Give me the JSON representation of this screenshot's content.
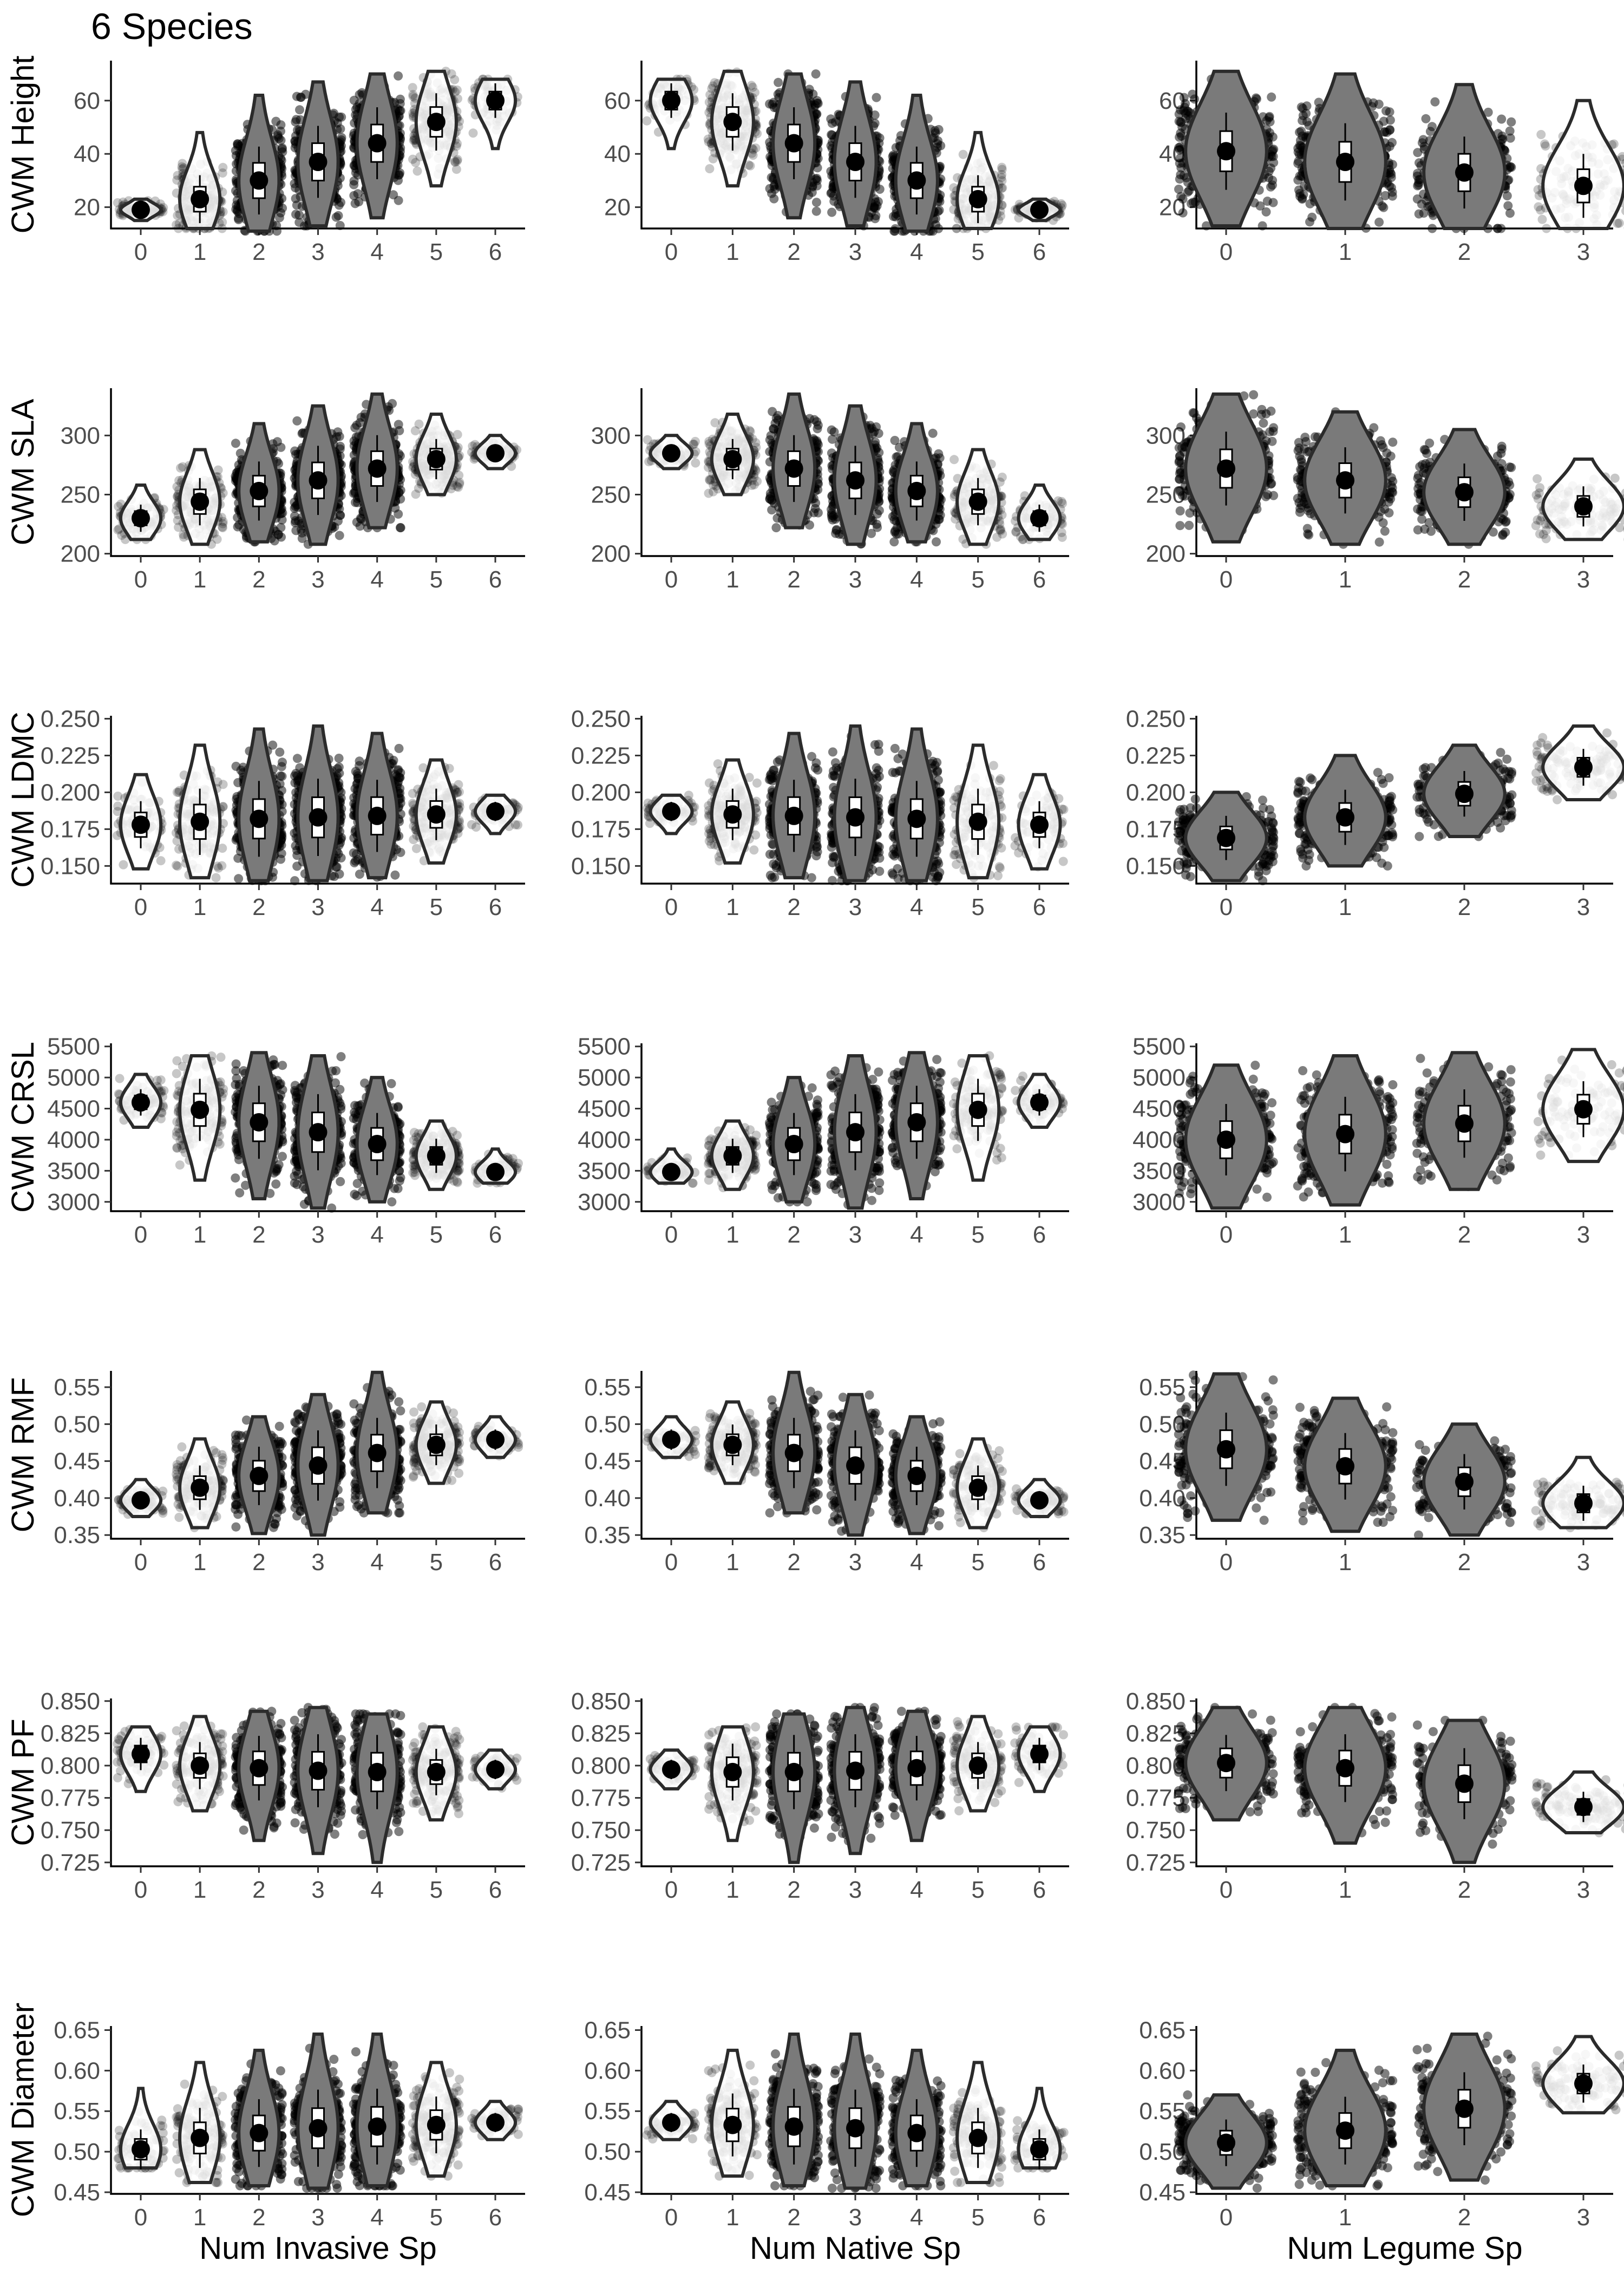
{
  "title": "6 Species",
  "colors": {
    "jitter": "#000000",
    "violin_fill_dense": "#7a7a7a",
    "violin_fill_sparse": "#ffffff",
    "violin_stroke": "#2b2b2b",
    "box_fill": "#ffffff",
    "mean_point": "#000000",
    "axis": "#000000",
    "tick_text": "#4d4d4d"
  },
  "chart_data": {
    "type": "violin",
    "xlabels": [
      "Num Invasive Sp",
      "Num Native Sp",
      "Num Legume Sp"
    ],
    "rows": [
      {
        "ylabel": "CWM Height",
        "ylim": [
          12,
          75
        ],
        "yticks": [
          20,
          40,
          60
        ],
        "yticklabels": [
          "20",
          "40",
          "60"
        ],
        "panels": [
          {
            "categories": [
              "0",
              "1",
              "2",
              "3",
              "4",
              "5",
              "6"
            ],
            "means": [
              19,
              23,
              30,
              37,
              44,
              52,
              60
            ],
            "lo": [
              15,
              12,
              11,
              13,
              16,
              28,
              42
            ],
            "hi": [
              23,
              48,
              62,
              67,
              70,
              71,
              68
            ],
            "density": [
              0.15,
              0.4,
              1,
              1,
              1,
              0.55,
              0.1
            ]
          },
          {
            "categories": [
              "0",
              "1",
              "2",
              "3",
              "4",
              "5",
              "6"
            ],
            "means": [
              60,
              52,
              44,
              37,
              30,
              23,
              19
            ],
            "lo": [
              42,
              28,
              16,
              13,
              11,
              12,
              15
            ],
            "hi": [
              68,
              71,
              70,
              67,
              62,
              48,
              23
            ],
            "density": [
              0.1,
              0.55,
              1,
              1,
              1,
              0.4,
              0.15
            ]
          },
          {
            "categories": [
              "0",
              "1",
              "2",
              "3"
            ],
            "means": [
              41,
              37,
              33,
              28
            ],
            "lo": [
              13,
              12,
              12,
              12
            ],
            "hi": [
              71,
              70,
              66,
              60
            ],
            "density": [
              1,
              1,
              0.8,
              0.3
            ]
          }
        ]
      },
      {
        "ylabel": "CWM SLA",
        "ylim": [
          198,
          340
        ],
        "yticks": [
          200,
          250,
          300
        ],
        "yticklabels": [
          "200",
          "250",
          "300"
        ],
        "panels": [
          {
            "categories": [
              "0",
              "1",
              "2",
              "3",
              "4",
              "5",
              "6"
            ],
            "means": [
              230,
              244,
              253,
              262,
              272,
              280,
              285
            ],
            "lo": [
              212,
              208,
              210,
              208,
              222,
              250,
              272
            ],
            "hi": [
              258,
              288,
              310,
              325,
              335,
              318,
              300
            ],
            "density": [
              0.15,
              0.4,
              1,
              1,
              1,
              0.55,
              0.1
            ]
          },
          {
            "categories": [
              "0",
              "1",
              "2",
              "3",
              "4",
              "5",
              "6"
            ],
            "means": [
              285,
              280,
              272,
              262,
              253,
              244,
              230
            ],
            "lo": [
              272,
              250,
              222,
              208,
              210,
              208,
              212
            ],
            "hi": [
              300,
              318,
              335,
              325,
              310,
              288,
              258
            ],
            "density": [
              0.1,
              0.55,
              1,
              1,
              1,
              0.4,
              0.15
            ]
          },
          {
            "categories": [
              "0",
              "1",
              "2",
              "3"
            ],
            "means": [
              272,
              262,
              252,
              240
            ],
            "lo": [
              210,
              208,
              208,
              212
            ],
            "hi": [
              335,
              320,
              305,
              280
            ],
            "density": [
              1,
              1,
              0.8,
              0.3
            ]
          }
        ]
      },
      {
        "ylabel": "CWM LDMC",
        "ylim": [
          0.138,
          0.252
        ],
        "yticks": [
          0.15,
          0.175,
          0.2,
          0.225,
          0.25
        ],
        "yticklabels": [
          "0.150",
          "0.175",
          "0.200",
          "0.225",
          "0.250"
        ],
        "panels": [
          {
            "categories": [
              "0",
              "1",
              "2",
              "3",
              "4",
              "5",
              "6"
            ],
            "means": [
              0.178,
              0.18,
              0.182,
              0.183,
              0.184,
              0.185,
              0.187
            ],
            "lo": [
              0.148,
              0.142,
              0.14,
              0.14,
              0.142,
              0.152,
              0.172
            ],
            "hi": [
              0.212,
              0.232,
              0.243,
              0.245,
              0.24,
              0.222,
              0.198
            ],
            "density": [
              0.15,
              0.4,
              1,
              1,
              1,
              0.55,
              0.1
            ]
          },
          {
            "categories": [
              "0",
              "1",
              "2",
              "3",
              "4",
              "5",
              "6"
            ],
            "means": [
              0.187,
              0.185,
              0.184,
              0.183,
              0.182,
              0.18,
              0.178
            ],
            "lo": [
              0.172,
              0.152,
              0.142,
              0.14,
              0.14,
              0.142,
              0.148
            ],
            "hi": [
              0.198,
              0.222,
              0.24,
              0.245,
              0.243,
              0.232,
              0.212
            ],
            "density": [
              0.1,
              0.55,
              1,
              1,
              1,
              0.4,
              0.15
            ]
          },
          {
            "categories": [
              "0",
              "1",
              "2",
              "3"
            ],
            "means": [
              0.169,
              0.183,
              0.199,
              0.217
            ],
            "lo": [
              0.14,
              0.15,
              0.17,
              0.195
            ],
            "hi": [
              0.2,
              0.225,
              0.232,
              0.245
            ],
            "density": [
              1,
              1,
              0.8,
              0.3
            ]
          }
        ]
      },
      {
        "ylabel": "CWM CRSL",
        "ylim": [
          2850,
          5550
        ],
        "yticks": [
          3000,
          3500,
          4000,
          4500,
          5000,
          5500
        ],
        "yticklabels": [
          "3000",
          "3500",
          "4000",
          "4500",
          "5000",
          "5500"
        ],
        "panels": [
          {
            "categories": [
              "0",
              "1",
              "2",
              "3",
              "4",
              "5",
              "6"
            ],
            "means": [
              4600,
              4480,
              4280,
              4120,
              3930,
              3740,
              3480
            ],
            "lo": [
              4200,
              3350,
              3050,
              2900,
              3000,
              3200,
              3300
            ],
            "hi": [
              5050,
              5350,
              5400,
              5350,
              5000,
              4300,
              3850
            ],
            "density": [
              0.15,
              0.4,
              1,
              1,
              1,
              0.55,
              0.1
            ]
          },
          {
            "categories": [
              "0",
              "1",
              "2",
              "3",
              "4",
              "5",
              "6"
            ],
            "means": [
              3480,
              3740,
              3930,
              4120,
              4280,
              4480,
              4600
            ],
            "lo": [
              3300,
              3200,
              3000,
              2900,
              3050,
              3350,
              4200
            ],
            "hi": [
              3850,
              4300,
              5000,
              5350,
              5400,
              5350,
              5050
            ],
            "density": [
              0.1,
              0.55,
              1,
              1,
              1,
              0.4,
              0.15
            ]
          },
          {
            "categories": [
              "0",
              "1",
              "2",
              "3"
            ],
            "means": [
              4000,
              4090,
              4260,
              4490
            ],
            "lo": [
              2900,
              2950,
              3200,
              3650
            ],
            "hi": [
              5200,
              5350,
              5400,
              5450
            ],
            "density": [
              1,
              1,
              0.8,
              0.3
            ]
          }
        ]
      },
      {
        "ylabel": "CWM RMF",
        "ylim": [
          0.345,
          0.572
        ],
        "yticks": [
          0.35,
          0.4,
          0.45,
          0.5,
          0.55
        ],
        "yticklabels": [
          "0.35",
          "0.40",
          "0.45",
          "0.50",
          "0.55"
        ],
        "panels": [
          {
            "categories": [
              "0",
              "1",
              "2",
              "3",
              "4",
              "5",
              "6"
            ],
            "means": [
              0.397,
              0.414,
              0.43,
              0.444,
              0.461,
              0.472,
              0.479
            ],
            "lo": [
              0.375,
              0.36,
              0.352,
              0.35,
              0.38,
              0.42,
              0.455
            ],
            "hi": [
              0.425,
              0.48,
              0.51,
              0.54,
              0.57,
              0.53,
              0.51
            ],
            "density": [
              0.15,
              0.4,
              1,
              1,
              1,
              0.55,
              0.1
            ]
          },
          {
            "categories": [
              "0",
              "1",
              "2",
              "3",
              "4",
              "5",
              "6"
            ],
            "means": [
              0.479,
              0.472,
              0.461,
              0.444,
              0.43,
              0.414,
              0.397
            ],
            "lo": [
              0.455,
              0.42,
              0.38,
              0.35,
              0.352,
              0.36,
              0.375
            ],
            "hi": [
              0.51,
              0.53,
              0.57,
              0.54,
              0.51,
              0.48,
              0.425
            ],
            "density": [
              0.1,
              0.55,
              1,
              1,
              1,
              0.4,
              0.15
            ]
          },
          {
            "categories": [
              "0",
              "1",
              "2",
              "3"
            ],
            "means": [
              0.466,
              0.443,
              0.422,
              0.393
            ],
            "lo": [
              0.37,
              0.355,
              0.35,
              0.36
            ],
            "hi": [
              0.568,
              0.535,
              0.5,
              0.455
            ],
            "density": [
              1,
              1,
              0.8,
              0.3
            ]
          }
        ]
      },
      {
        "ylabel": "CWM PF",
        "ylim": [
          0.722,
          0.852
        ],
        "yticks": [
          0.725,
          0.75,
          0.775,
          0.8,
          0.825,
          0.85
        ],
        "yticklabels": [
          "0.725",
          "0.750",
          "0.775",
          "0.800",
          "0.825",
          "0.850"
        ],
        "panels": [
          {
            "categories": [
              "0",
              "1",
              "2",
              "3",
              "4",
              "5",
              "6"
            ],
            "means": [
              0.809,
              0.8,
              0.798,
              0.796,
              0.795,
              0.795,
              0.797
            ],
            "lo": [
              0.78,
              0.765,
              0.742,
              0.732,
              0.725,
              0.758,
              0.782
            ],
            "hi": [
              0.83,
              0.838,
              0.842,
              0.845,
              0.84,
              0.83,
              0.812
            ],
            "density": [
              0.15,
              0.4,
              1,
              1,
              1,
              0.55,
              0.1
            ]
          },
          {
            "categories": [
              "0",
              "1",
              "2",
              "3",
              "4",
              "5",
              "6"
            ],
            "means": [
              0.797,
              0.795,
              0.795,
              0.796,
              0.798,
              0.8,
              0.809
            ],
            "lo": [
              0.782,
              0.742,
              0.725,
              0.732,
              0.742,
              0.765,
              0.78
            ],
            "hi": [
              0.812,
              0.83,
              0.84,
              0.845,
              0.842,
              0.838,
              0.83
            ],
            "density": [
              0.1,
              0.55,
              1,
              1,
              1,
              0.4,
              0.15
            ]
          },
          {
            "categories": [
              "0",
              "1",
              "2",
              "3"
            ],
            "means": [
              0.802,
              0.798,
              0.786,
              0.768
            ],
            "lo": [
              0.758,
              0.74,
              0.725,
              0.748
            ],
            "hi": [
              0.845,
              0.845,
              0.835,
              0.795
            ],
            "density": [
              1,
              1,
              0.8,
              0.3
            ]
          }
        ]
      },
      {
        "ylabel": "CWM Diameter",
        "ylim": [
          0.448,
          0.655
        ],
        "yticks": [
          0.45,
          0.5,
          0.55,
          0.6,
          0.65
        ],
        "yticklabels": [
          "0.45",
          "0.50",
          "0.55",
          "0.60",
          "0.65"
        ],
        "panels": [
          {
            "categories": [
              "0",
              "1",
              "2",
              "3",
              "4",
              "5",
              "6"
            ],
            "means": [
              0.503,
              0.517,
              0.523,
              0.529,
              0.531,
              0.533,
              0.536
            ],
            "lo": [
              0.48,
              0.462,
              0.458,
              0.455,
              0.458,
              0.47,
              0.515
            ],
            "hi": [
              0.578,
              0.61,
              0.625,
              0.645,
              0.645,
              0.61,
              0.562
            ],
            "density": [
              0.15,
              0.4,
              1,
              1,
              1,
              0.55,
              0.1
            ]
          },
          {
            "categories": [
              "0",
              "1",
              "2",
              "3",
              "4",
              "5",
              "6"
            ],
            "means": [
              0.536,
              0.533,
              0.531,
              0.529,
              0.523,
              0.517,
              0.503
            ],
            "lo": [
              0.515,
              0.47,
              0.458,
              0.455,
              0.458,
              0.462,
              0.48
            ],
            "hi": [
              0.562,
              0.625,
              0.645,
              0.645,
              0.625,
              0.61,
              0.578
            ],
            "density": [
              0.1,
              0.55,
              1,
              1,
              1,
              0.4,
              0.15
            ]
          },
          {
            "categories": [
              "0",
              "1",
              "2",
              "3"
            ],
            "means": [
              0.511,
              0.526,
              0.553,
              0.584
            ],
            "lo": [
              0.455,
              0.458,
              0.465,
              0.548
            ],
            "hi": [
              0.57,
              0.625,
              0.645,
              0.642
            ],
            "density": [
              1,
              1,
              0.8,
              0.3
            ]
          }
        ]
      }
    ]
  }
}
